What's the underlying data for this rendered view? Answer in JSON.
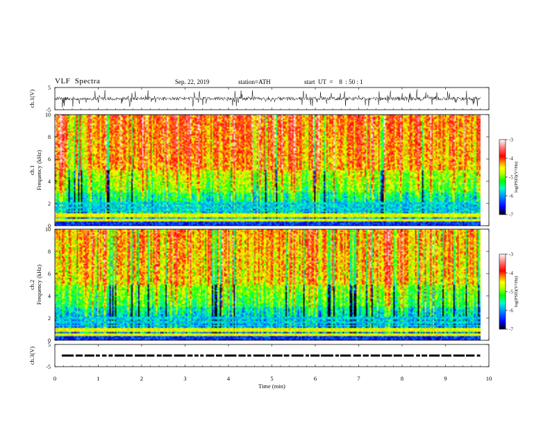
{
  "header": {
    "title": "VLF  Spectra",
    "date": "Sep. 22, 2019",
    "station": "station=ATH",
    "start": "start  UT  =    8  : 50 : 1"
  },
  "chart_data": [
    {
      "type": "line",
      "panel": "ch1-waveform",
      "ylabel": "ch.1(V)",
      "ylim": [
        -5,
        5
      ],
      "yticks": [
        "5",
        "-5"
      ],
      "xlim": [
        0,
        10
      ],
      "description_values": {
        "baseline_v": 0,
        "noise_amplitude_v": 2.5,
        "x_end_min": 9.8
      }
    },
    {
      "type": "heatmap",
      "panel": "ch1-spectrogram",
      "ylabel": "ch.1\nFrequency  (kHz)",
      "ylim": [
        0,
        10
      ],
      "yticks": [
        "10",
        "8",
        "6",
        "4",
        "2",
        "0"
      ],
      "xlim": [
        0,
        10
      ],
      "colorbar": {
        "label": "log(PSD)(V²/Hz)",
        "range": [
          -7,
          -3
        ],
        "ticks": [
          "-3",
          "-4",
          "-5",
          "-6",
          "-7"
        ]
      },
      "bands_khz": [
        0.2,
        0.5,
        0.8,
        1.0,
        1.3,
        1.6,
        2.0
      ]
    },
    {
      "type": "heatmap",
      "panel": "ch2-spectrogram",
      "ylabel": "ch.2\nFrequency  (kHz)",
      "ylim": [
        0,
        10
      ],
      "yticks": [
        "10",
        "8",
        "6",
        "4",
        "2",
        "0"
      ],
      "xlim": [
        0,
        10
      ],
      "colorbar": {
        "label": "log(PSD)(V²/Hz)",
        "range": [
          -7,
          -3
        ],
        "ticks": [
          "-3",
          "-4",
          "-5",
          "-6",
          "-7"
        ]
      },
      "bands_khz": [
        0.2,
        0.5,
        0.8,
        1.0,
        1.3,
        1.6,
        2.0
      ]
    },
    {
      "type": "line",
      "panel": "ch3-waveform",
      "ylabel": "ch.3(V)",
      "ylim": [
        -5,
        5
      ],
      "yticks": [
        "5",
        "-5"
      ],
      "xlim": [
        0,
        10
      ],
      "xlabel": "Time  (min)",
      "xticks": [
        "0",
        "1",
        "2",
        "3",
        "4",
        "5",
        "6",
        "7",
        "8",
        "9",
        "10"
      ],
      "description_values": {
        "level_v": 0,
        "x_end_min": 9.8
      }
    }
  ],
  "colors": {
    "scale": [
      "#000000",
      "#0000ff",
      "#00a0ff",
      "#00ffc0",
      "#00ff00",
      "#c8ff00",
      "#ffff00",
      "#ff8000",
      "#ff0000",
      "#ff8080",
      "#ffffff"
    ]
  }
}
